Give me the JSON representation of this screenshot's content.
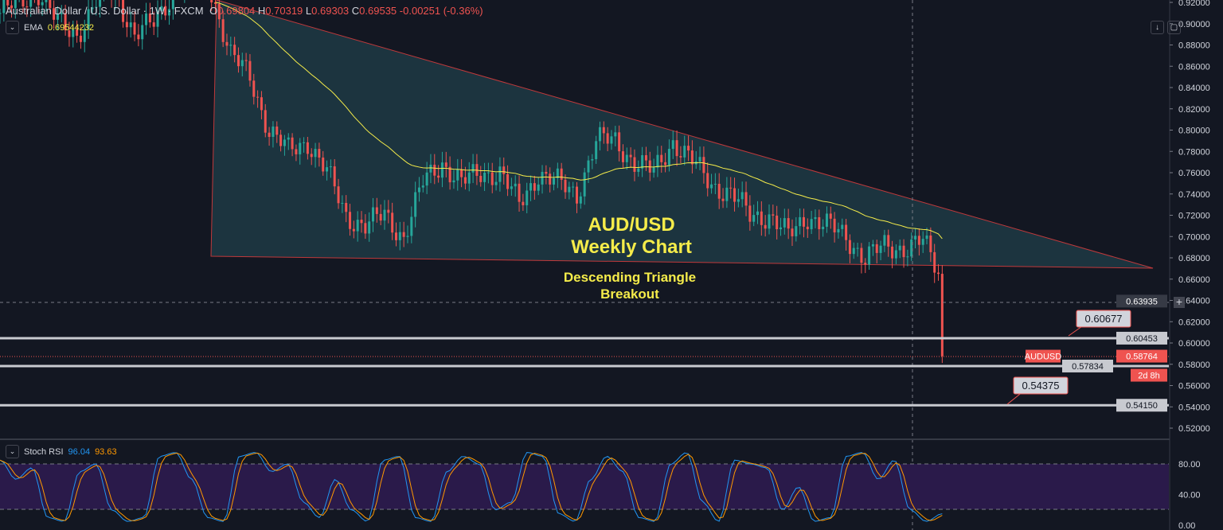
{
  "header": {
    "symbol": "Australian Dollar / U.S. Dollar",
    "interval": "1W",
    "exchange": "FXCM",
    "open_label": "O",
    "open": "0.69804",
    "high_label": "H",
    "high": "0.70319",
    "low_label": "L",
    "low": "0.69303",
    "close_label": "C",
    "close": "0.69535",
    "change": "-0.00251 (-0.36%)"
  },
  "ema": {
    "label": "EMA",
    "value": "0.69544232",
    "color": "#f5ec4a"
  },
  "stoch": {
    "label": "Stoch RSI",
    "k": "96.04",
    "d": "93.63",
    "k_color": "#2196f3",
    "d_color": "#ff9800"
  },
  "annotations": {
    "title1": "AUD/USD",
    "title2": "Weekly Chart",
    "sub1": "Descending Triangle",
    "sub2": "Breakout",
    "level1": "0.60677",
    "level2": "0.54375"
  },
  "price_tags": {
    "crosshair": "0.63935",
    "support1": "0.60453",
    "symbol": "AUDUSD",
    "last": "0.58764",
    "countdown": "2d 8h",
    "support2": "0.57834",
    "support3": "0.54150"
  },
  "colors": {
    "up": "#26a69a",
    "down": "#ef5350",
    "background": "#131722",
    "triangle_fill": "#1e3a44",
    "stoch_band": "#2a1a4a"
  },
  "chart_data": {
    "type": "candlestick",
    "interval": "weekly",
    "ylim": [
      0.51,
      0.925
    ],
    "y_ticks": [
      "0.92000",
      "0.90000",
      "0.88000",
      "0.86000",
      "0.84000",
      "0.82000",
      "0.80000",
      "0.78000",
      "0.76000",
      "0.74000",
      "0.72000",
      "0.70000",
      "0.68000",
      "0.66000",
      "0.64000",
      "0.62000",
      "0.60000",
      "0.58000",
      "0.56000",
      "0.54000",
      "0.52000"
    ],
    "approx_closes_every_5_weeks": [
      0.91,
      0.92,
      0.93,
      0.9,
      0.89,
      0.92,
      0.93,
      0.89,
      0.9,
      0.93,
      0.95,
      0.93,
      0.87,
      0.85,
      0.8,
      0.78,
      0.79,
      0.76,
      0.72,
      0.71,
      0.72,
      0.7,
      0.75,
      0.77,
      0.75,
      0.76,
      0.76,
      0.73,
      0.76,
      0.75,
      0.74,
      0.79,
      0.79,
      0.77,
      0.76,
      0.79,
      0.77,
      0.75,
      0.74,
      0.72,
      0.72,
      0.7,
      0.72,
      0.71,
      0.7,
      0.68,
      0.69,
      0.69,
      0.695,
      0.66,
      0.58764
    ],
    "horizontal_levels": [
      0.60453,
      0.57834,
      0.5415
    ],
    "stoch_ticks": [
      "80.00",
      "40.00",
      "0.00"
    ],
    "stoch_k_approx": [
      85,
      60,
      75,
      10,
      5,
      70,
      80,
      20,
      5,
      10,
      90,
      95,
      60,
      10,
      5,
      90,
      95,
      70,
      80,
      30,
      10,
      60,
      20,
      5,
      85,
      90,
      10,
      5,
      70,
      90,
      80,
      20,
      30,
      95,
      90,
      15,
      5,
      60,
      90,
      70,
      10,
      5,
      80,
      95,
      30,
      5,
      85,
      80,
      75,
      20,
      50,
      5,
      10,
      90,
      95,
      60,
      85,
      20,
      5,
      15
    ]
  }
}
